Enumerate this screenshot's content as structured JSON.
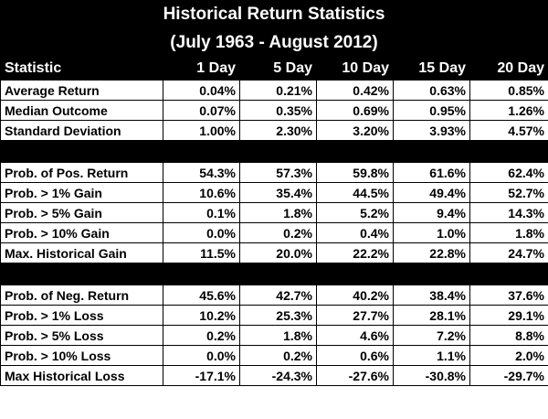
{
  "title": "Historical Return Statistics",
  "subtitle": "(July 1963 - August 2012)",
  "columns": [
    "Statistic",
    "1 Day",
    "5 Day",
    "10 Day",
    "15 Day",
    "20 Day"
  ],
  "sections": [
    [
      {
        "label": "Average Return",
        "values": [
          "0.04%",
          "0.21%",
          "0.42%",
          "0.63%",
          "0.85%"
        ]
      },
      {
        "label": "Median Outcome",
        "values": [
          "0.07%",
          "0.35%",
          "0.69%",
          "0.95%",
          "1.26%"
        ]
      },
      {
        "label": "Standard Deviation",
        "values": [
          "1.00%",
          "2.30%",
          "3.20%",
          "3.93%",
          "4.57%"
        ]
      }
    ],
    [
      {
        "label": "Prob. of Pos. Return",
        "values": [
          "54.3%",
          "57.3%",
          "59.8%",
          "61.6%",
          "62.4%"
        ]
      },
      {
        "label": "Prob. > 1% Gain",
        "values": [
          "10.6%",
          "35.4%",
          "44.5%",
          "49.4%",
          "52.7%"
        ]
      },
      {
        "label": "Prob. > 5% Gain",
        "values": [
          "0.1%",
          "1.8%",
          "5.2%",
          "9.4%",
          "14.3%"
        ]
      },
      {
        "label": "Prob. > 10% Gain",
        "values": [
          "0.0%",
          "0.2%",
          "0.4%",
          "1.0%",
          "1.8%"
        ]
      },
      {
        "label": "Max. Historical Gain",
        "values": [
          "11.5%",
          "20.0%",
          "22.2%",
          "22.8%",
          "24.7%"
        ]
      }
    ],
    [
      {
        "label": "Prob. of Neg. Return",
        "values": [
          "45.6%",
          "42.7%",
          "40.2%",
          "38.4%",
          "37.6%"
        ]
      },
      {
        "label": "Prob. > 1% Loss",
        "values": [
          "10.2%",
          "25.3%",
          "27.7%",
          "28.1%",
          "29.1%"
        ]
      },
      {
        "label": "Prob. > 5% Loss",
        "values": [
          "0.2%",
          "1.8%",
          "4.6%",
          "7.2%",
          "8.8%"
        ]
      },
      {
        "label": "Prob. > 10% Loss",
        "values": [
          "0.0%",
          "0.2%",
          "0.6%",
          "1.1%",
          "2.0%"
        ]
      },
      {
        "label": "Max Historical Loss",
        "values": [
          "-17.1%",
          "-24.3%",
          "-27.6%",
          "-30.8%",
          "-29.7%"
        ]
      }
    ]
  ]
}
